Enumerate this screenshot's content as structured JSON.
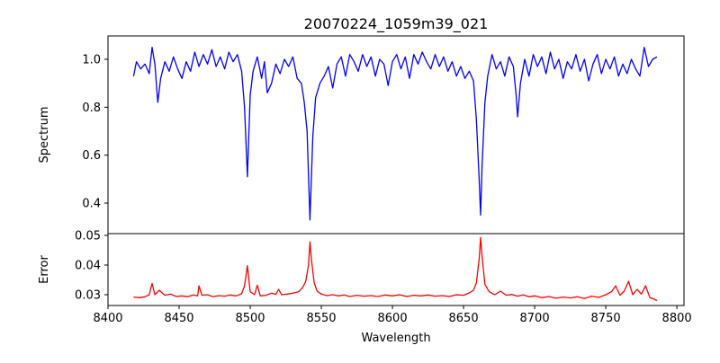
{
  "chart_data": [
    {
      "type": "line",
      "title": "20070224_1059m39_021",
      "xlabel": "",
      "ylabel": "Spectrum",
      "xlim": [
        8400,
        8805
      ],
      "ylim": [
        0.2725,
        1.0975
      ],
      "yticks": [
        "0.4",
        "0.6",
        "0.8",
        "1.0"
      ],
      "ytick_values": [
        0.4,
        0.6,
        0.8,
        1.0
      ],
      "color": "#0000ff",
      "series": [
        {
          "name": "Spectrum",
          "x": [
            8418,
            8420,
            8423,
            8426,
            8429,
            8431,
            8433,
            8435,
            8437,
            8440,
            8443,
            8446,
            8449,
            8452,
            8455,
            8458,
            8461,
            8464,
            8467,
            8470,
            8473,
            8476,
            8479,
            8482,
            8485,
            8488,
            8491,
            8494,
            8496,
            8498,
            8500,
            8502,
            8505,
            8508,
            8510,
            8512,
            8515,
            8518,
            8521,
            8524,
            8527,
            8530,
            8533,
            8536,
            8538,
            8540,
            8542,
            8544,
            8546,
            8549,
            8552,
            8555,
            8558,
            8561,
            8564,
            8567,
            8570,
            8573,
            8576,
            8579,
            8582,
            8585,
            8588,
            8591,
            8594,
            8597,
            8600,
            8603,
            8606,
            8609,
            8612,
            8615,
            8618,
            8621,
            8624,
            8627,
            8630,
            8633,
            8636,
            8639,
            8642,
            8645,
            8648,
            8651,
            8654,
            8657,
            8659,
            8661,
            8662,
            8663,
            8665,
            8667,
            8670,
            8673,
            8676,
            8679,
            8682,
            8685,
            8687,
            8688,
            8690,
            8693,
            8696,
            8699,
            8702,
            8705,
            8708,
            8711,
            8714,
            8717,
            8720,
            8723,
            8726,
            8729,
            8732,
            8735,
            8738,
            8741,
            8744,
            8747,
            8750,
            8753,
            8756,
            8759,
            8762,
            8765,
            8768,
            8771,
            8774,
            8777,
            8780,
            8783,
            8786
          ],
          "y": [
            0.93,
            0.99,
            0.96,
            0.98,
            0.94,
            1.05,
            0.98,
            0.82,
            0.92,
            0.99,
            0.95,
            1.01,
            0.96,
            0.92,
            0.99,
            0.95,
            1.03,
            0.97,
            1.02,
            0.98,
            1.04,
            0.97,
            1.01,
            0.96,
            1.03,
            0.99,
            1.02,
            0.95,
            0.8,
            0.51,
            0.85,
            0.95,
            1.01,
            0.92,
            0.99,
            0.86,
            0.9,
            0.98,
            0.94,
            1.0,
            0.97,
            1.01,
            0.92,
            0.9,
            0.82,
            0.7,
            0.33,
            0.68,
            0.84,
            0.9,
            0.93,
            0.97,
            0.88,
            0.98,
            1.01,
            0.93,
            1.02,
            0.99,
            0.95,
            1.02,
            0.97,
            1.01,
            0.93,
            1.0,
            0.98,
            0.89,
            0.99,
            1.02,
            0.96,
            1.01,
            0.92,
            1.02,
            0.98,
            1.03,
            0.99,
            0.96,
            1.02,
            0.97,
            1.01,
            0.95,
            0.99,
            0.93,
            0.97,
            0.92,
            0.95,
            0.91,
            0.75,
            0.5,
            0.35,
            0.55,
            0.82,
            0.93,
            1.02,
            0.96,
            0.99,
            0.93,
            1.01,
            0.97,
            0.85,
            0.76,
            0.9,
            1.0,
            0.93,
            1.02,
            0.97,
            1.01,
            0.94,
            1.03,
            0.96,
            1.0,
            0.92,
            0.99,
            0.96,
            1.02,
            0.95,
            1.0,
            0.91,
            0.98,
            1.02,
            0.94,
            1.0,
            0.96,
            1.01,
            0.93,
            0.98,
            0.94,
            1.0,
            0.96,
            0.93,
            1.05,
            0.97,
            1.0,
            1.01
          ]
        }
      ]
    },
    {
      "type": "line",
      "title": "",
      "xlabel": "Wavelength",
      "ylabel": "Error",
      "xlim": [
        8400,
        8805
      ],
      "ylim": [
        0.02636,
        0.0506
      ],
      "xticks": [
        "8400",
        "8450",
        "8500",
        "8550",
        "8600",
        "8650",
        "8700",
        "8750",
        "8800"
      ],
      "xtick_values": [
        8400,
        8450,
        8500,
        8550,
        8600,
        8650,
        8700,
        8750,
        8800
      ],
      "yticks": [
        "0.03",
        "0.04",
        "0.05"
      ],
      "ytick_values": [
        0.03,
        0.04,
        0.05
      ],
      "color": "#ff0000",
      "series": [
        {
          "name": "Error",
          "x": [
            8418,
            8422,
            8426,
            8429,
            8431,
            8433,
            8436,
            8440,
            8444,
            8448,
            8452,
            8456,
            8460,
            8463,
            8464,
            8466,
            8470,
            8474,
            8478,
            8482,
            8486,
            8490,
            8494,
            8496,
            8498,
            8500,
            8503,
            8505,
            8507,
            8511,
            8515,
            8518,
            8520,
            8522,
            8526,
            8530,
            8534,
            8537,
            8539,
            8541,
            8542,
            8543,
            8545,
            8547,
            8550,
            8554,
            8558,
            8562,
            8566,
            8570,
            8575,
            8580,
            8585,
            8590,
            8595,
            8600,
            8605,
            8610,
            8615,
            8620,
            8625,
            8630,
            8635,
            8640,
            8645,
            8650,
            8654,
            8657,
            8659,
            8661,
            8662,
            8663,
            8665,
            8668,
            8672,
            8676,
            8680,
            8684,
            8688,
            8692,
            8696,
            8700,
            8705,
            8710,
            8715,
            8720,
            8725,
            8730,
            8735,
            8740,
            8745,
            8750,
            8754,
            8757,
            8760,
            8763,
            8766,
            8769,
            8772,
            8775,
            8778,
            8781,
            8784,
            8786
          ],
          "y": [
            0.0292,
            0.029,
            0.0293,
            0.03,
            0.0338,
            0.03,
            0.0315,
            0.0298,
            0.0302,
            0.0294,
            0.0296,
            0.0293,
            0.0299,
            0.0296,
            0.033,
            0.0298,
            0.03,
            0.0293,
            0.0297,
            0.0295,
            0.0299,
            0.0296,
            0.0303,
            0.033,
            0.0398,
            0.031,
            0.03,
            0.0332,
            0.0296,
            0.0298,
            0.0305,
            0.0301,
            0.0318,
            0.03,
            0.0302,
            0.0305,
            0.031,
            0.0325,
            0.0345,
            0.04,
            0.0478,
            0.042,
            0.034,
            0.0312,
            0.0302,
            0.0297,
            0.03,
            0.0296,
            0.0299,
            0.0294,
            0.0298,
            0.0295,
            0.0297,
            0.0294,
            0.0299,
            0.0296,
            0.03,
            0.0294,
            0.0298,
            0.0296,
            0.0299,
            0.0295,
            0.0297,
            0.0294,
            0.03,
            0.0298,
            0.0306,
            0.0315,
            0.034,
            0.042,
            0.0493,
            0.043,
            0.0335,
            0.031,
            0.03,
            0.0312,
            0.0298,
            0.0301,
            0.0295,
            0.0299,
            0.0293,
            0.0296,
            0.029,
            0.0294,
            0.0288,
            0.0292,
            0.0289,
            0.0293,
            0.0287,
            0.0295,
            0.0291,
            0.03,
            0.031,
            0.033,
            0.0298,
            0.0312,
            0.0345,
            0.03,
            0.0318,
            0.0302,
            0.033,
            0.029,
            0.0285,
            0.028
          ]
        }
      ]
    }
  ]
}
